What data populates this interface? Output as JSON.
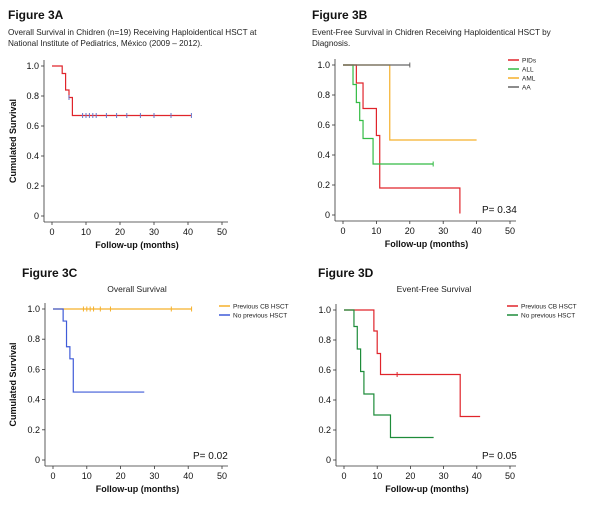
{
  "chart_data": [
    {
      "id": "A",
      "type": "line",
      "figure_label": "Figure 3A",
      "title": "Overall Survival in Chidren (n=19) Receiving Haploidentical HSCT at National Institute of Pediatrics, México (2009 – 2012).",
      "xlabel": "Follow-up (months)",
      "ylabel": "Cumulated Survival",
      "xlim": [
        0,
        50
      ],
      "ylim": [
        0,
        1.0
      ],
      "xticks": [
        0,
        10,
        20,
        30,
        40,
        50
      ],
      "xtick_labels": [
        "0",
        "10",
        "20",
        "30",
        "40",
        "50"
      ],
      "yticks": [
        0,
        0.2,
        0.4,
        0.6,
        0.8,
        1.0
      ],
      "ytick_labels": [
        "0",
        "0.2",
        "0.4",
        "0.6",
        "0.8",
        "1.0"
      ],
      "grid": false,
      "p_value": "",
      "legend_position": "",
      "series": [
        {
          "name": "",
          "color": "#e0242b",
          "steps": [
            [
              0,
              1.0
            ],
            [
              3,
              0.95
            ],
            [
              4,
              0.84
            ],
            [
              5,
              0.79
            ],
            [
              6,
              0.67
            ],
            [
              41,
              0.67
            ]
          ],
          "censored": [
            [
              5,
              0.79
            ],
            [
              9,
              0.67
            ],
            [
              10,
              0.67
            ],
            [
              11,
              0.67
            ],
            [
              12,
              0.67
            ],
            [
              13,
              0.67
            ],
            [
              16,
              0.67
            ],
            [
              19,
              0.67
            ],
            [
              22,
              0.67
            ],
            [
              26,
              0.67
            ],
            [
              30,
              0.67
            ],
            [
              35,
              0.67
            ],
            [
              41,
              0.67
            ]
          ],
          "censor_color": "#6677cc"
        }
      ]
    },
    {
      "id": "B",
      "type": "line",
      "figure_label": "Figure 3B",
      "title": "Event-Free Survival in Chidren Receiving Haploidentical HSCT by Diagnosis.",
      "xlabel": "Follow-up (months)",
      "ylabel": "",
      "xlim": [
        0,
        50
      ],
      "ylim": [
        0,
        1.0
      ],
      "xticks": [
        0,
        10,
        20,
        30,
        40,
        50
      ],
      "xtick_labels": [
        "0",
        "10",
        "20",
        "30",
        "40",
        "50"
      ],
      "yticks": [
        0,
        0.2,
        0.4,
        0.6,
        0.8,
        1.0
      ],
      "ytick_labels": [
        "0",
        "0.2",
        "0.4",
        "0.6",
        "0.8",
        "1.0"
      ],
      "grid": false,
      "p_value": "P= 0.34",
      "legend_position": "top-right",
      "series": [
        {
          "name": "PIDs",
          "color": "#e0242b",
          "steps": [
            [
              0,
              1.0
            ],
            [
              4,
              0.88
            ],
            [
              6,
              0.71
            ],
            [
              10,
              0.53
            ],
            [
              11,
              0.18
            ],
            [
              35,
              0.18
            ],
            [
              35,
              0.01
            ]
          ],
          "censored": []
        },
        {
          "name": "ALL",
          "color": "#33bb44",
          "steps": [
            [
              0,
              1.0
            ],
            [
              3,
              0.87
            ],
            [
              4,
              0.75
            ],
            [
              5,
              0.63
            ],
            [
              6,
              0.51
            ],
            [
              9,
              0.34
            ],
            [
              27,
              0.34
            ]
          ],
          "censored": [
            [
              27,
              0.34
            ]
          ]
        },
        {
          "name": "AML",
          "color": "#f5b02a",
          "steps": [
            [
              0,
              1.0
            ],
            [
              14,
              1.0
            ],
            [
              14,
              0.5
            ],
            [
              40,
              0.5
            ]
          ],
          "censored": []
        },
        {
          "name": "AA",
          "color": "#666666",
          "steps": [
            [
              0,
              1.0
            ],
            [
              20,
              1.0
            ]
          ],
          "censored": [
            [
              20,
              1.0
            ]
          ]
        }
      ]
    },
    {
      "id": "C",
      "type": "line",
      "figure_label": "Figure 3C",
      "title": "Overall Survival",
      "xlabel": "Follow-up (months)",
      "ylabel": "Cumulated Survival",
      "xlim": [
        0,
        50
      ],
      "ylim": [
        0,
        1.0
      ],
      "xticks": [
        0,
        10,
        20,
        30,
        40,
        50
      ],
      "xtick_labels": [
        "0",
        "10",
        "20",
        "30",
        "40",
        "50"
      ],
      "yticks": [
        0,
        0.2,
        0.4,
        0.6,
        0.8,
        1.0
      ],
      "ytick_labels": [
        "0",
        "0.2",
        "0.4",
        "0.6",
        "0.8",
        "1.0"
      ],
      "grid": false,
      "p_value": "P= 0.02",
      "legend_position": "top-right",
      "series": [
        {
          "name": "Previous CB HSCT",
          "color": "#f5b02a",
          "steps": [
            [
              0,
              1.0
            ],
            [
              41,
              1.0
            ]
          ],
          "censored": [
            [
              9,
              1.0
            ],
            [
              10,
              1.0
            ],
            [
              11,
              1.0
            ],
            [
              12,
              1.0
            ],
            [
              14,
              1.0
            ],
            [
              17,
              1.0
            ],
            [
              35,
              1.0
            ],
            [
              41,
              1.0
            ]
          ]
        },
        {
          "name": "No previous HSCT",
          "color": "#3f5bd8",
          "steps": [
            [
              0,
              1.0
            ],
            [
              3,
              0.92
            ],
            [
              4,
              0.75
            ],
            [
              5,
              0.67
            ],
            [
              6,
              0.45
            ],
            [
              27,
              0.45
            ]
          ],
          "censored": []
        }
      ]
    },
    {
      "id": "D",
      "type": "line",
      "figure_label": "Figure 3D",
      "title": "Event-Free Survival",
      "xlabel": "Follow-up (months)",
      "ylabel": "",
      "xlim": [
        0,
        50
      ],
      "ylim": [
        0,
        1.0
      ],
      "xticks": [
        0,
        10,
        20,
        30,
        40,
        50
      ],
      "xtick_labels": [
        "0",
        "10",
        "20",
        "30",
        "40",
        "50"
      ],
      "yticks": [
        0,
        0.2,
        0.4,
        0.6,
        0.8,
        1.0
      ],
      "ytick_labels": [
        "0",
        "0.2",
        "0.4",
        "0.6",
        "0.8",
        "1.0"
      ],
      "grid": false,
      "p_value": "P= 0.05",
      "legend_position": "top-right",
      "series": [
        {
          "name": "Previous CB HSCT",
          "color": "#e0242b",
          "steps": [
            [
              0,
              1.0
            ],
            [
              9,
              1.0
            ],
            [
              9,
              0.86
            ],
            [
              10,
              0.71
            ],
            [
              11,
              0.57
            ],
            [
              35,
              0.57
            ],
            [
              35,
              0.29
            ],
            [
              41,
              0.29
            ]
          ],
          "censored": [
            [
              16,
              0.57
            ]
          ]
        },
        {
          "name": "No previous HSCT",
          "color": "#1e8c3a",
          "steps": [
            [
              0,
              1.0
            ],
            [
              3,
              0.89
            ],
            [
              4,
              0.74
            ],
            [
              5,
              0.59
            ],
            [
              6,
              0.44
            ],
            [
              9,
              0.44
            ],
            [
              9,
              0.3
            ],
            [
              14,
              0.3
            ],
            [
              14,
              0.15
            ],
            [
              27,
              0.15
            ]
          ],
          "censored": []
        }
      ]
    }
  ]
}
